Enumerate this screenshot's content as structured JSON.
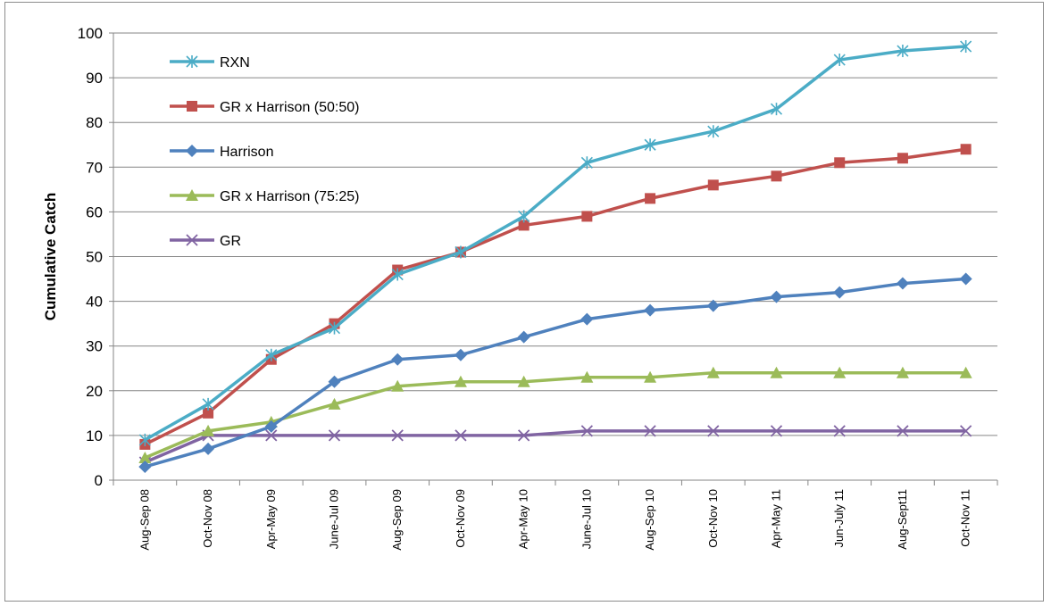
{
  "chart_data": {
    "type": "line",
    "title": "",
    "xlabel": "",
    "ylabel": "Cumulative Catch",
    "ylim": [
      0,
      100
    ],
    "yticks": [
      0,
      10,
      20,
      30,
      40,
      50,
      60,
      70,
      80,
      90,
      100
    ],
    "grid": "horizontal",
    "legend_placement": "top-left",
    "categories": [
      "Aug-Sep 08",
      "Oct-Nov 08",
      "Apr-May 09",
      "June-Jul 09",
      "Aug-Sep 09",
      "Oct-Nov 09",
      "Apr-May 10",
      "June-Jul 10",
      "Aug-Sep 10",
      "Oct-Nov 10",
      "Apr-May 11",
      "Jun-July 11",
      "Aug-Sept11",
      "Oct-Nov 11"
    ],
    "series": [
      {
        "name": "RXN",
        "color": "#4bacc6",
        "marker": "asterisk",
        "values": [
          9,
          17,
          28,
          34,
          46,
          51,
          59,
          71,
          75,
          78,
          83,
          94,
          96,
          97
        ]
      },
      {
        "name": "GR x Harrison (50:50)",
        "color": "#c0504d",
        "marker": "square",
        "values": [
          8,
          15,
          27,
          35,
          47,
          51,
          57,
          59,
          63,
          66,
          68,
          71,
          72,
          74
        ]
      },
      {
        "name": "Harrison",
        "color": "#4f81bd",
        "marker": "diamond",
        "values": [
          3,
          7,
          12,
          22,
          27,
          28,
          32,
          36,
          38,
          39,
          41,
          42,
          44,
          45
        ]
      },
      {
        "name": "GR x Harrison (75:25)",
        "color": "#9bbb59",
        "marker": "triangle",
        "values": [
          5,
          11,
          13,
          17,
          21,
          22,
          22,
          23,
          23,
          24,
          24,
          24,
          24,
          24
        ]
      },
      {
        "name": "GR",
        "color": "#8064a2",
        "marker": "x",
        "values": [
          4,
          10,
          10,
          10,
          10,
          10,
          10,
          11,
          11,
          11,
          11,
          11,
          11,
          11
        ]
      }
    ]
  }
}
